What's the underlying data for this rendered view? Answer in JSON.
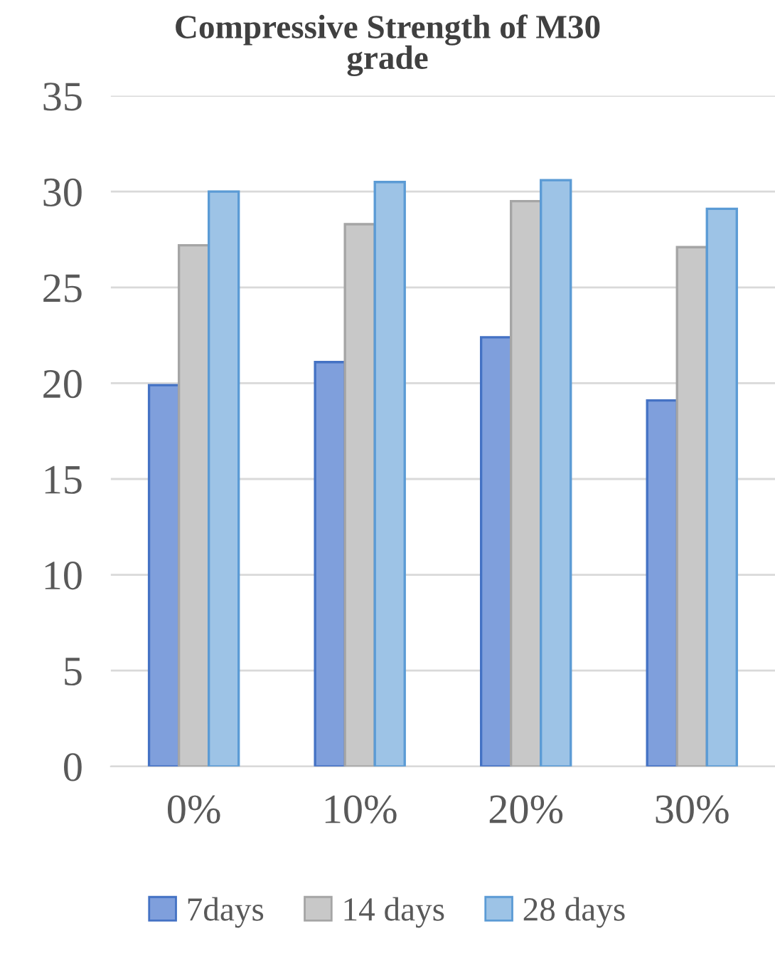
{
  "chart_data": {
    "type": "bar",
    "title": "Compressive Strength of M30\ngrade",
    "categories": [
      "0%",
      "10%",
      "20%",
      "30%"
    ],
    "series": [
      {
        "name": "7days",
        "color": "#7f9fdc",
        "values": [
          19.9,
          21.1,
          22.4,
          19.1
        ]
      },
      {
        "name": "14 days",
        "color": "#c8c8c8",
        "values": [
          27.2,
          28.3,
          29.5,
          27.1
        ]
      },
      {
        "name": "28 days",
        "color": "#9dc3e6",
        "values": [
          30.0,
          30.5,
          30.6,
          29.1
        ]
      }
    ],
    "ylim": [
      0,
      35
    ],
    "yticks": [
      0,
      5,
      10,
      15,
      20,
      25,
      30,
      35
    ],
    "grid": "y",
    "legend": "bottom"
  }
}
